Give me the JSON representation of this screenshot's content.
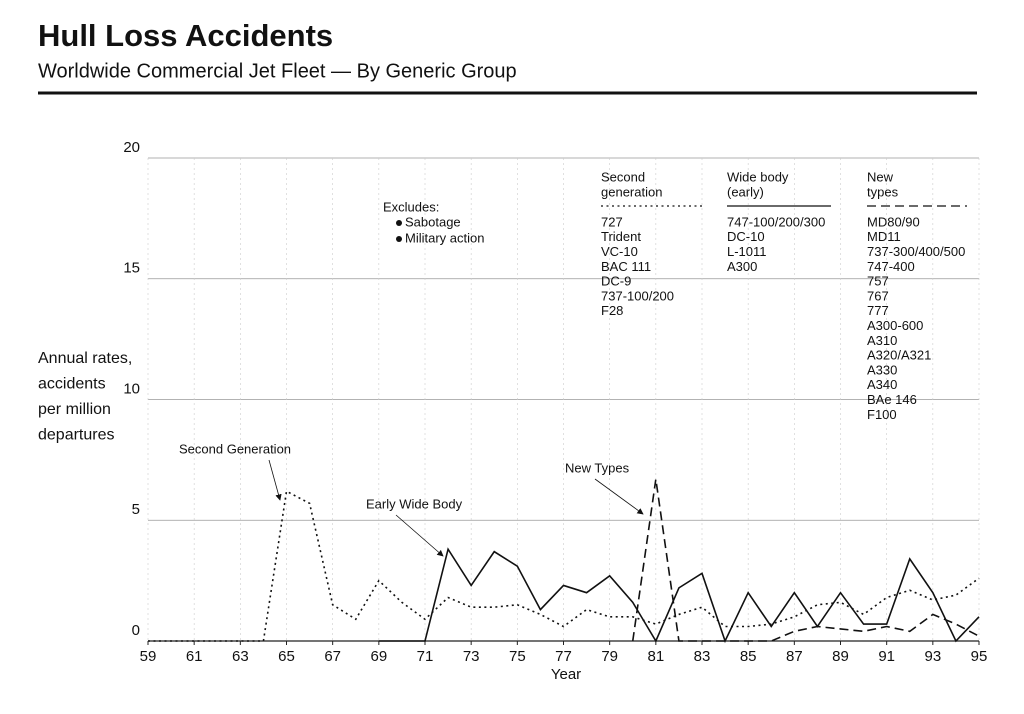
{
  "chart_data": {
    "type": "line",
    "title": "Hull Loss Accidents",
    "subtitle": "Worldwide Commercial Jet Fleet — By Generic Group",
    "y_label": [
      "Annual rates,",
      "accidents",
      "per million",
      "departures"
    ],
    "x_label": "Year",
    "x": [
      59,
      60,
      61,
      62,
      63,
      64,
      65,
      66,
      67,
      68,
      69,
      70,
      71,
      72,
      73,
      74,
      75,
      76,
      77,
      78,
      79,
      80,
      81,
      82,
      83,
      84,
      85,
      86,
      87,
      88,
      89,
      90,
      91,
      92,
      93,
      94,
      95
    ],
    "xlim": [
      59,
      95
    ],
    "xticks": [
      59,
      61,
      63,
      65,
      67,
      69,
      71,
      73,
      75,
      77,
      79,
      81,
      83,
      85,
      87,
      89,
      91,
      93,
      95
    ],
    "ylim": [
      0,
      20
    ],
    "yticks": [
      0,
      5,
      10,
      15,
      20
    ],
    "grid": true,
    "series": [
      {
        "name": "Second Generation",
        "color": "#111111",
        "style": "dotted",
        "values": [
          0,
          0,
          0,
          0,
          0,
          0,
          6.2,
          5.7,
          1.5,
          0.9,
          2.5,
          1.6,
          0.9,
          1.8,
          1.4,
          1.4,
          1.5,
          1.1,
          0.6,
          1.3,
          1.0,
          1.0,
          0.7,
          1.1,
          1.4,
          0.6,
          0.6,
          0.7,
          1.0,
          1.5,
          1.6,
          1.1,
          1.8,
          2.1,
          1.7,
          1.9,
          2.6
        ]
      },
      {
        "name": "Early Wide Body",
        "color": "#111111",
        "style": "solid",
        "values": [
          null,
          null,
          null,
          null,
          null,
          null,
          null,
          null,
          null,
          null,
          0,
          0,
          0,
          3.8,
          2.3,
          3.7,
          3.1,
          1.3,
          2.3,
          2.0,
          2.7,
          1.6,
          0,
          2.2,
          2.8,
          0,
          2.0,
          0.6,
          2.0,
          0.6,
          2.0,
          0.7,
          0.7,
          3.4,
          2.0,
          0,
          1.0
        ]
      },
      {
        "name": "New Types",
        "color": "#111111",
        "style": "dashed",
        "values": [
          null,
          null,
          null,
          null,
          null,
          null,
          null,
          null,
          null,
          null,
          null,
          null,
          null,
          null,
          null,
          null,
          null,
          null,
          null,
          null,
          null,
          0,
          6.7,
          0,
          0,
          0,
          0,
          0,
          0.4,
          0.6,
          0.5,
          0.4,
          0.6,
          0.4,
          1.1,
          0.7,
          0.2
        ]
      }
    ],
    "excludes": {
      "title": "Excludes:",
      "items": [
        "Sabotage",
        "Military action"
      ]
    },
    "key": [
      {
        "header": [
          "Second",
          "generation"
        ],
        "items": [
          "727",
          "Trident",
          "VC-10",
          "BAC 111",
          "DC-9",
          "737-100/200",
          "F28"
        ]
      },
      {
        "header": [
          "Wide body",
          "(early)"
        ],
        "items": [
          "747-100/200/300",
          "DC-10",
          "L-1011",
          "A300"
        ]
      },
      {
        "header": [
          "New",
          "types"
        ],
        "items": [
          "MD80/90",
          "MD11",
          "737-300/400/500",
          "747-400",
          "757",
          "767",
          "777",
          "A300-600",
          "A310",
          "A320/A321",
          "A330",
          "A340",
          "BAe 146",
          "F100"
        ]
      }
    ]
  }
}
